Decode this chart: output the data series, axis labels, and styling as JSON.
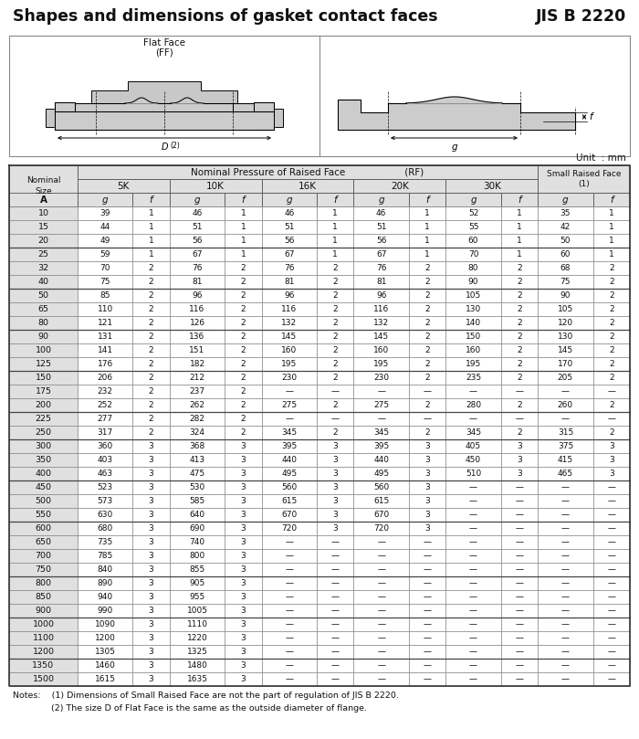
{
  "title": "Shapes and dimensions of gasket contact faces",
  "standard": "JIS B 2220",
  "unit_label": "Unit  ： mm",
  "col_headers_row3": [
    "A",
    "g",
    "f",
    "g",
    "f",
    "g",
    "f",
    "g",
    "f",
    "g",
    "f",
    "g",
    "f"
  ],
  "rows": [
    [
      10,
      39,
      1,
      46,
      1,
      46,
      1,
      46,
      1,
      52,
      1,
      35,
      1
    ],
    [
      15,
      44,
      1,
      51,
      1,
      51,
      1,
      51,
      1,
      55,
      1,
      42,
      1
    ],
    [
      20,
      49,
      1,
      56,
      1,
      56,
      1,
      56,
      1,
      60,
      1,
      50,
      1
    ],
    [
      25,
      59,
      1,
      67,
      1,
      67,
      1,
      67,
      1,
      70,
      1,
      60,
      1
    ],
    [
      32,
      70,
      2,
      76,
      2,
      76,
      2,
      76,
      2,
      80,
      2,
      68,
      2
    ],
    [
      40,
      75,
      2,
      81,
      2,
      81,
      2,
      81,
      2,
      90,
      2,
      75,
      2
    ],
    [
      50,
      85,
      2,
      96,
      2,
      96,
      2,
      96,
      2,
      105,
      2,
      90,
      2
    ],
    [
      65,
      110,
      2,
      116,
      2,
      116,
      2,
      116,
      2,
      130,
      2,
      105,
      2
    ],
    [
      80,
      121,
      2,
      126,
      2,
      132,
      2,
      132,
      2,
      140,
      2,
      120,
      2
    ],
    [
      90,
      131,
      2,
      136,
      2,
      145,
      2,
      145,
      2,
      150,
      2,
      130,
      2
    ],
    [
      100,
      141,
      2,
      151,
      2,
      160,
      2,
      160,
      2,
      160,
      2,
      145,
      2
    ],
    [
      125,
      176,
      2,
      182,
      2,
      195,
      2,
      195,
      2,
      195,
      2,
      170,
      2
    ],
    [
      150,
      206,
      2,
      212,
      2,
      230,
      2,
      230,
      2,
      235,
      2,
      205,
      2
    ],
    [
      175,
      232,
      2,
      237,
      2,
      null,
      null,
      null,
      null,
      null,
      null,
      null,
      null
    ],
    [
      200,
      252,
      2,
      262,
      2,
      275,
      2,
      275,
      2,
      280,
      2,
      260,
      2
    ],
    [
      225,
      277,
      2,
      282,
      2,
      null,
      null,
      null,
      null,
      null,
      null,
      null,
      null
    ],
    [
      250,
      317,
      2,
      324,
      2,
      345,
      2,
      345,
      2,
      345,
      2,
      315,
      2
    ],
    [
      300,
      360,
      3,
      368,
      3,
      395,
      3,
      395,
      3,
      405,
      3,
      375,
      3
    ],
    [
      350,
      403,
      3,
      413,
      3,
      440,
      3,
      440,
      3,
      450,
      3,
      415,
      3
    ],
    [
      400,
      463,
      3,
      475,
      3,
      495,
      3,
      495,
      3,
      510,
      3,
      465,
      3
    ],
    [
      450,
      523,
      3,
      530,
      3,
      560,
      3,
      560,
      3,
      null,
      null,
      null,
      null
    ],
    [
      500,
      573,
      3,
      585,
      3,
      615,
      3,
      615,
      3,
      null,
      null,
      null,
      null
    ],
    [
      550,
      630,
      3,
      640,
      3,
      670,
      3,
      670,
      3,
      null,
      null,
      null,
      null
    ],
    [
      600,
      680,
      3,
      690,
      3,
      720,
      3,
      720,
      3,
      null,
      null,
      null,
      null
    ],
    [
      650,
      735,
      3,
      740,
      3,
      null,
      null,
      null,
      null,
      null,
      null,
      null,
      null
    ],
    [
      700,
      785,
      3,
      800,
      3,
      null,
      null,
      null,
      null,
      null,
      null,
      null,
      null
    ],
    [
      750,
      840,
      3,
      855,
      3,
      null,
      null,
      null,
      null,
      null,
      null,
      null,
      null
    ],
    [
      800,
      890,
      3,
      905,
      3,
      null,
      null,
      null,
      null,
      null,
      null,
      null,
      null
    ],
    [
      850,
      940,
      3,
      955,
      3,
      null,
      null,
      null,
      null,
      null,
      null,
      null,
      null
    ],
    [
      900,
      990,
      3,
      1005,
      3,
      null,
      null,
      null,
      null,
      null,
      null,
      null,
      null
    ],
    [
      1000,
      1090,
      3,
      1110,
      3,
      null,
      null,
      null,
      null,
      null,
      null,
      null,
      null
    ],
    [
      1100,
      1200,
      3,
      1220,
      3,
      null,
      null,
      null,
      null,
      null,
      null,
      null,
      null
    ],
    [
      1200,
      1305,
      3,
      1325,
      3,
      null,
      null,
      null,
      null,
      null,
      null,
      null,
      null
    ],
    [
      1350,
      1460,
      3,
      1480,
      3,
      null,
      null,
      null,
      null,
      null,
      null,
      null,
      null
    ],
    [
      1500,
      1615,
      3,
      1635,
      3,
      null,
      null,
      null,
      null,
      null,
      null,
      null,
      null
    ]
  ],
  "group_separators": [
    3,
    6,
    9,
    12,
    15,
    17,
    20,
    23,
    27,
    30,
    33
  ],
  "notes_line1": "Notes:    (1) Dimensions of Small Raised Face are not the part of regulation of JIS B 2220.",
  "notes_line2": "              (2) The size D of Flat Face is the same as the outside diameter of flange.",
  "text_color": "#111111",
  "hdr_bg": "#e0e0e0",
  "pressure_labels": [
    "5K",
    "10K",
    "16K",
    "20K",
    "30K"
  ]
}
